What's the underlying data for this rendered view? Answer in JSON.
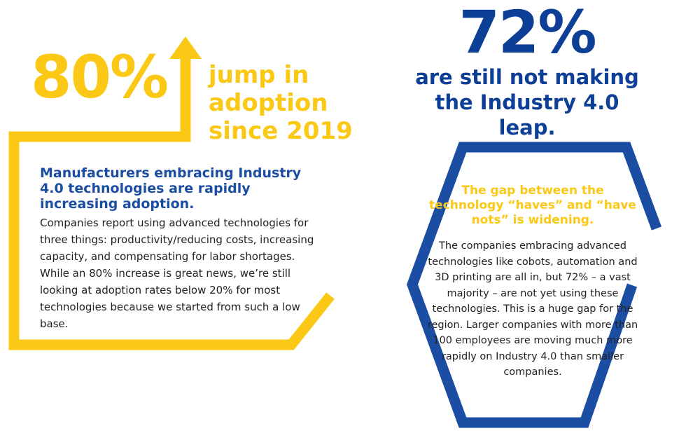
{
  "left_panel": {
    "stat": "80%",
    "stat_caption": "jump in adoption since 2019",
    "heading": "Manufacturers embracing Industry 4.0 technologies are rapidly increasing adoption.",
    "body": "Companies report using advanced technologies for three things: productivity/reducing costs, increasing capacity, and compensating for labor shortages. While an 80% increase is great news, we’re still looking at adoption rates below 20% for most technologies because we started from such a low base."
  },
  "right_panel": {
    "stat": "72%",
    "stat_caption": "are still not making the Industry 4.0 leap.",
    "heading": "The gap between the technology “haves” and “have nots” is widening.",
    "body": "The companies embracing advanced technologies like cobots, automation and 3D printing are all in, but 72% – a vast majority – are not yet using these technologies. This is a huge gap for the region. Larger companies with more than 100 employees are moving much more rapidly on Industry 4.0 than smaller companies."
  },
  "colors": {
    "yellow": "#fcc816",
    "blue": "#1b4ea3",
    "dark_blue": "#0e3f97",
    "text": "#222222"
  }
}
